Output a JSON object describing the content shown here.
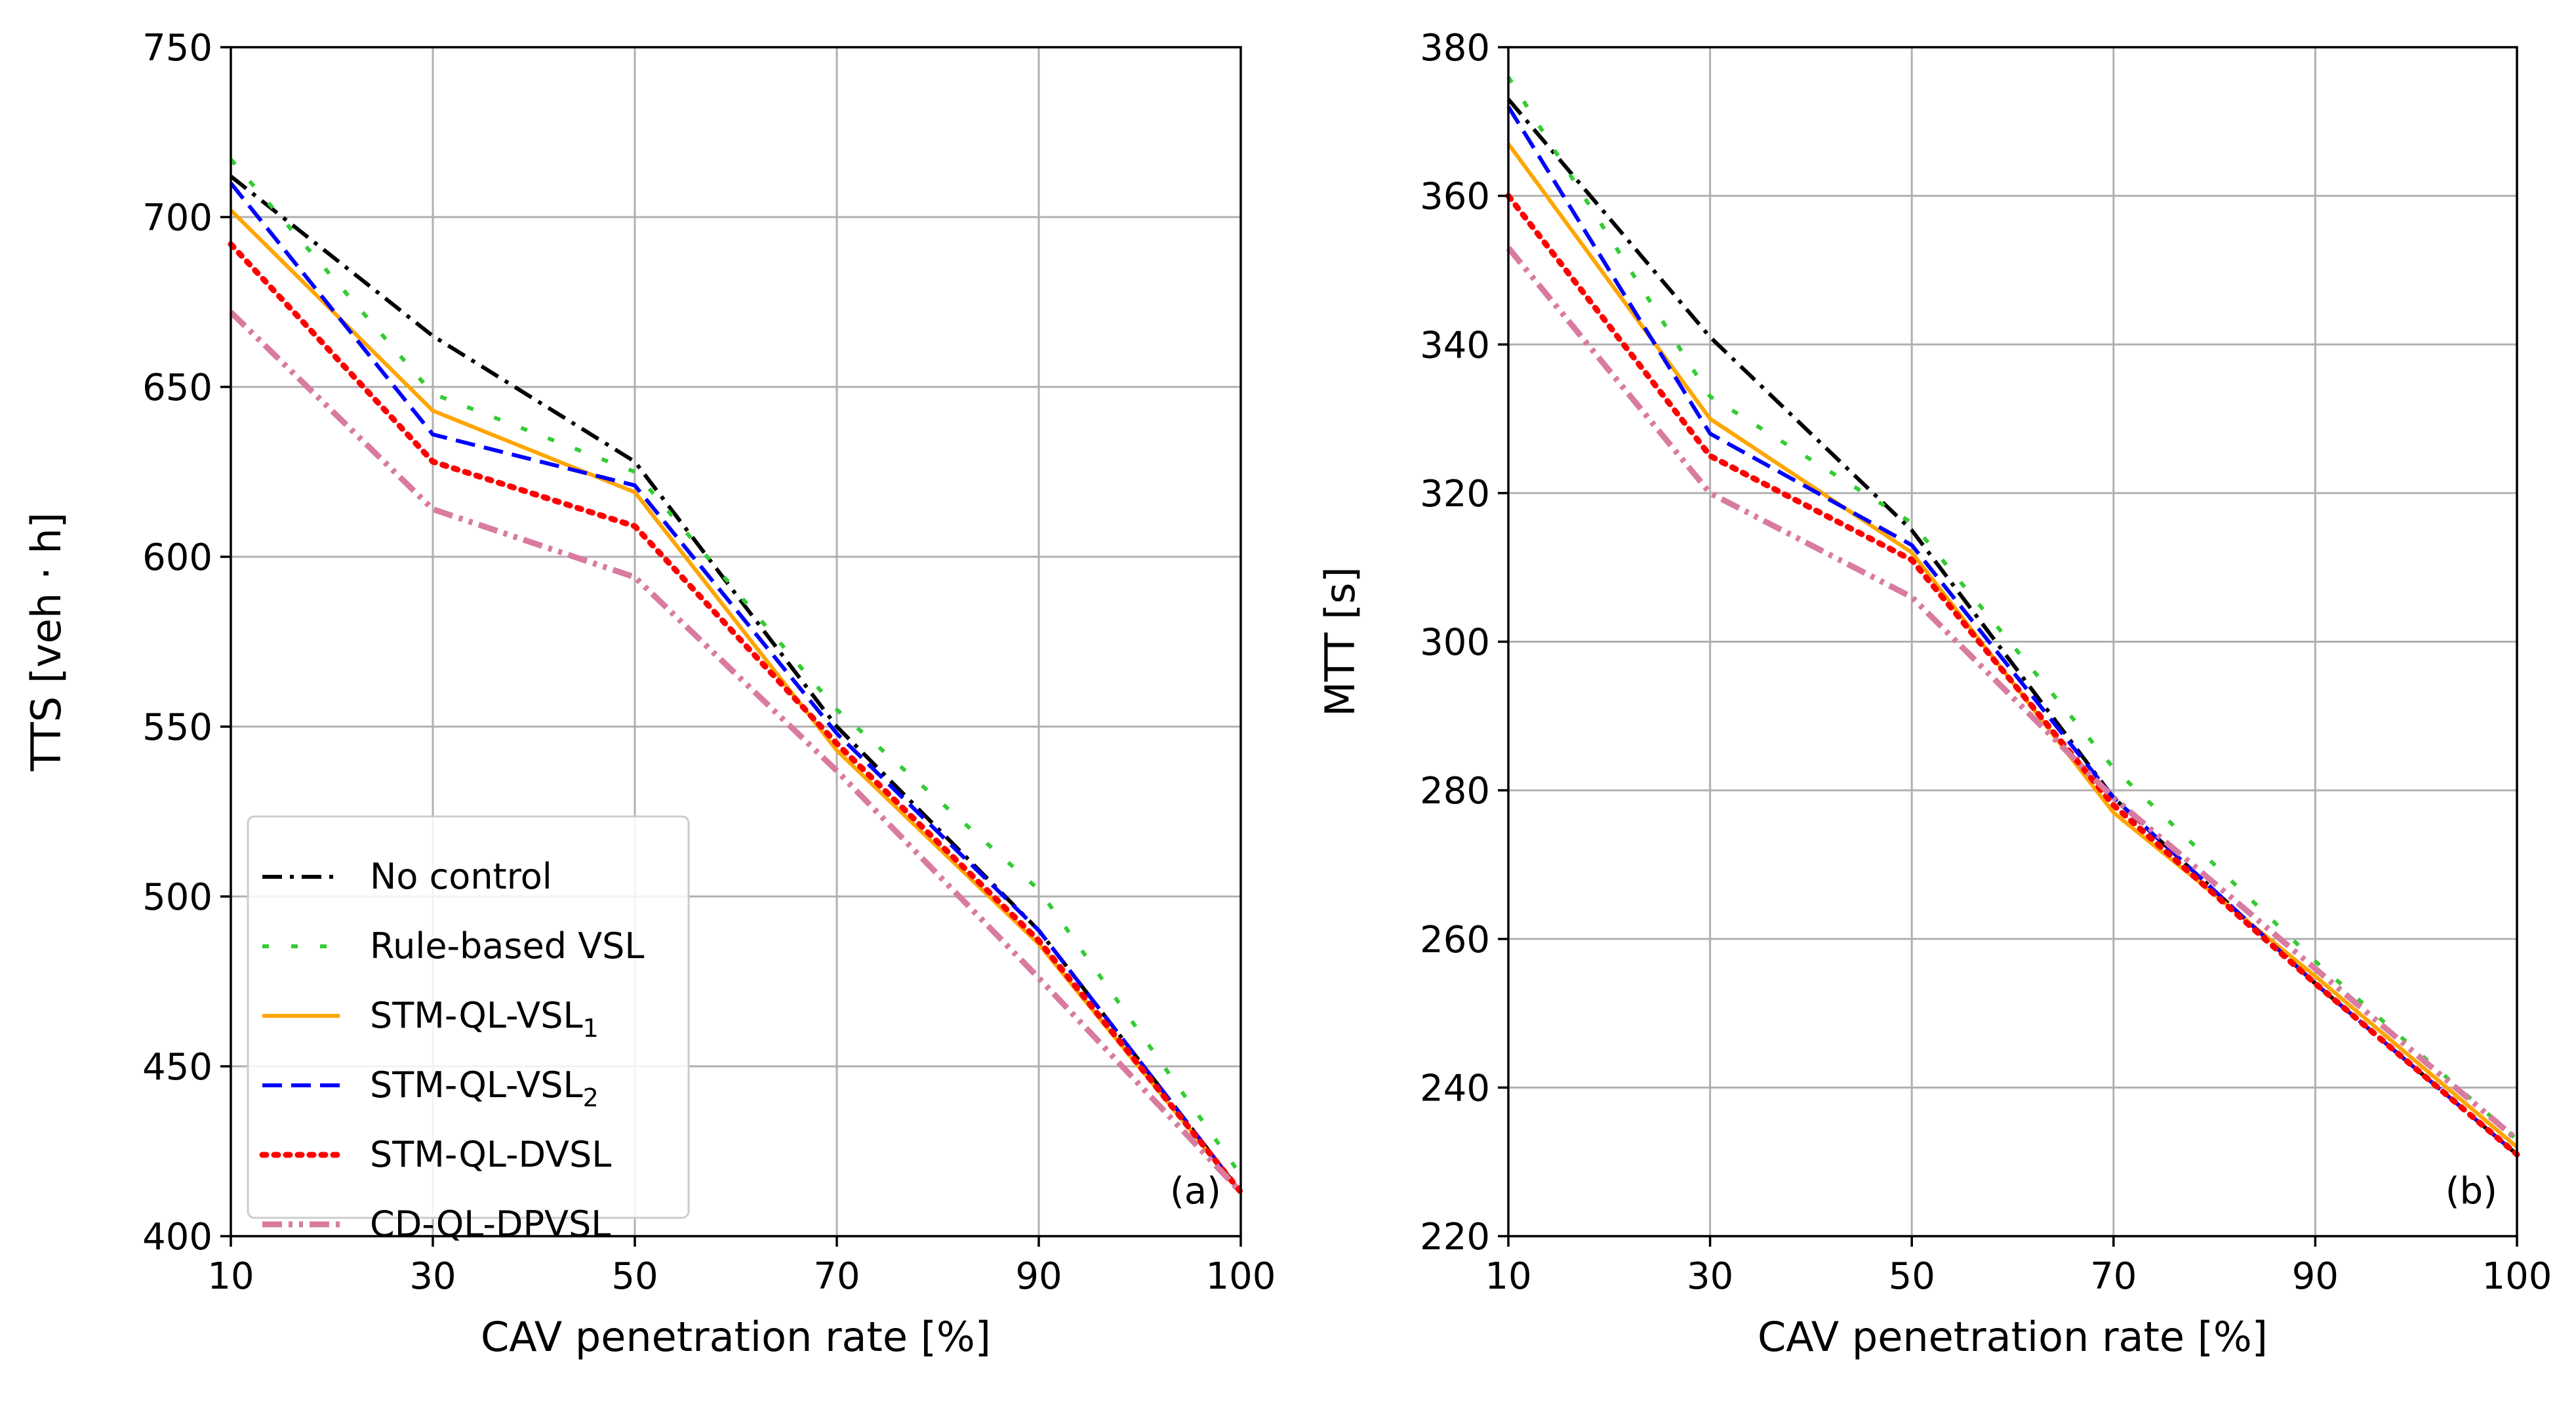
{
  "chart_data": [
    {
      "type": "line",
      "panel": "(a)",
      "xlabel": "CAV penetration rate [%]",
      "ylabel": "TTS [veh · h]",
      "categories": [
        "10",
        "30",
        "50",
        "70",
        "90",
        "100"
      ],
      "ylim": [
        400,
        750
      ],
      "yticks": [
        "400",
        "450",
        "500",
        "550",
        "600",
        "650",
        "700",
        "750"
      ],
      "grid": true,
      "legend_position": "lower-left",
      "series": [
        {
          "name": "No control",
          "color": "#000000",
          "style": "dashdot",
          "values": [
            712,
            665,
            628,
            550,
            490,
            413
          ]
        },
        {
          "name": "Rule-based VSL",
          "color": "#33cc33",
          "style": "loosedash",
          "values": [
            717,
            648,
            625,
            555,
            502,
            418
          ]
        },
        {
          "name": "STM-QL-VSL",
          "sub": "1",
          "color": "#ffa500",
          "style": "solid",
          "values": [
            702,
            643,
            619,
            543,
            486,
            413
          ]
        },
        {
          "name": "STM-QL-VSL",
          "sub": "2",
          "color": "#0000ff",
          "style": "dashed",
          "values": [
            710,
            636,
            621,
            548,
            490,
            413
          ]
        },
        {
          "name": "STM-QL-DVSL",
          "color": "#ff0000",
          "style": "dotted",
          "values": [
            692,
            628,
            609,
            545,
            487,
            413
          ]
        },
        {
          "name": "CD-QL-DPVSL",
          "color": "#d97ba0",
          "style": "dashdotdot",
          "values": [
            672,
            614,
            594,
            537,
            476,
            413
          ]
        }
      ]
    },
    {
      "type": "line",
      "panel": "(b)",
      "xlabel": "CAV penetration rate [%]",
      "ylabel": "MTT [s]",
      "categories": [
        "10",
        "30",
        "50",
        "70",
        "90",
        "100"
      ],
      "ylim": [
        220,
        380
      ],
      "yticks": [
        "220",
        "240",
        "260",
        "280",
        "300",
        "320",
        "340",
        "360",
        "380"
      ],
      "grid": true,
      "series": [
        {
          "name": "No control",
          "color": "#000000",
          "style": "dashdot",
          "values": [
            373,
            341,
            315,
            279,
            254,
            231
          ]
        },
        {
          "name": "Rule-based VSL",
          "color": "#33cc33",
          "style": "loosedash",
          "values": [
            376,
            333,
            316,
            283,
            257,
            233
          ]
        },
        {
          "name": "STM-QL-VSL",
          "sub": "1",
          "color": "#ffa500",
          "style": "solid",
          "values": [
            367,
            330,
            312,
            277,
            255,
            232
          ]
        },
        {
          "name": "STM-QL-VSL",
          "sub": "2",
          "color": "#0000ff",
          "style": "dashed",
          "values": [
            372,
            328,
            313,
            279,
            254,
            231
          ]
        },
        {
          "name": "STM-QL-DVSL",
          "color": "#ff0000",
          "style": "dotted",
          "values": [
            360,
            325,
            311,
            278,
            254,
            231
          ]
        },
        {
          "name": "CD-QL-DPVSL",
          "color": "#d97ba0",
          "style": "dashdotdot",
          "values": [
            353,
            320,
            306,
            279,
            256,
            233
          ]
        }
      ]
    }
  ]
}
